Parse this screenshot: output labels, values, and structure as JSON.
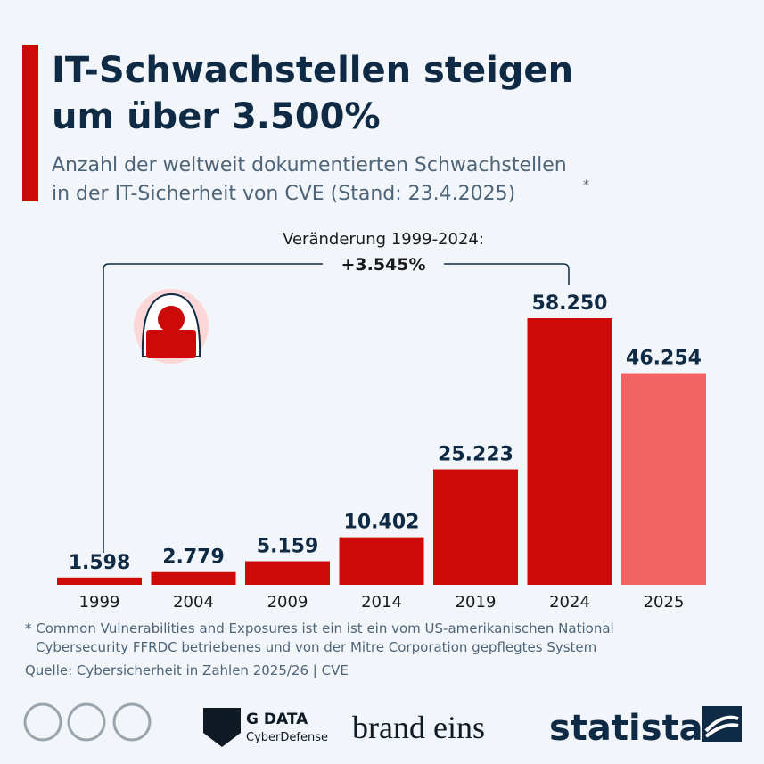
{
  "chart_data": {
    "type": "bar",
    "title": [
      "IT-Schwachstellen steigen",
      "um über 3.500%"
    ],
    "subtitle": [
      "Anzahl der weltweit dokumentierten Schwachstellen",
      "in der IT-Sicherheit von CVE (Stand: 23.4.2025)"
    ],
    "subtitle_marker": "*",
    "annotation": {
      "label": "Veränderung 1999-2024:",
      "value": "+3.545%"
    },
    "categories": [
      "1999",
      "2004",
      "2009",
      "2014",
      "2019",
      "2024",
      "2025"
    ],
    "values": [
      1598,
      2779,
      5159,
      10402,
      25223,
      58250,
      46254
    ],
    "value_labels": [
      "1.598",
      "2.779",
      "5.159",
      "10.402",
      "25.223",
      "58.250",
      "46.254"
    ],
    "colors": [
      "#cc0a0a",
      "#cc0a0a",
      "#cc0a0a",
      "#cc0a0a",
      "#cc0a0a",
      "#cc0a0a",
      "#f26464"
    ],
    "footnote": [
      "* Common Vulnerabilities and Exposures ist ein ist ein vom US-amerikanischen National",
      "Cybersecurity FFRDC betriebenes und von der Mitre Corporation gepflegtes System"
    ],
    "source": "Quelle: Cybersicherheit in Zahlen 2025/26 | CVE",
    "logos": {
      "gdata": "G DATA",
      "gdata_sub": "CyberDefense",
      "brandeins": "brand eins",
      "statista": "statista"
    }
  }
}
